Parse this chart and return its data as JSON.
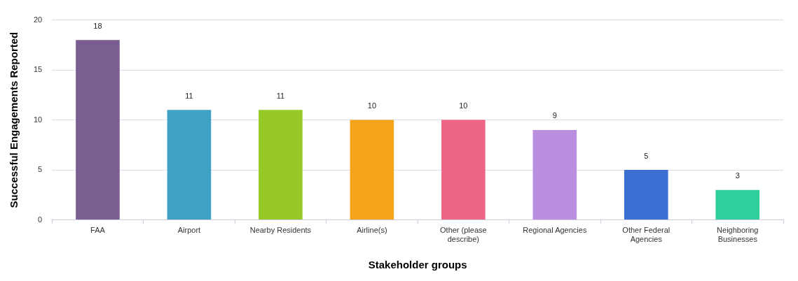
{
  "chart_data": {
    "type": "bar",
    "xlabel": "Stakeholder groups",
    "ylabel": "Successful Engagements Reported",
    "categories": [
      "FAA",
      "Airport",
      "Nearby Residents",
      "Airline(s)",
      "Other (please describe)",
      "Regional Agencies",
      "Other Federal Agencies",
      "Neighboring Businesses"
    ],
    "values": [
      18,
      11,
      11,
      10,
      10,
      9,
      5,
      3
    ],
    "colors": [
      "#7b5e91",
      "#3fa2c4",
      "#96c928",
      "#f4a41a",
      "#ef6585",
      "#bb8fe0",
      "#3b6fd4",
      "#2ecf9c"
    ],
    "ylim": [
      0,
      20
    ],
    "yticks": [
      0,
      5,
      10,
      15,
      20
    ],
    "grid": "y",
    "data_labels": true,
    "legend": false
  }
}
